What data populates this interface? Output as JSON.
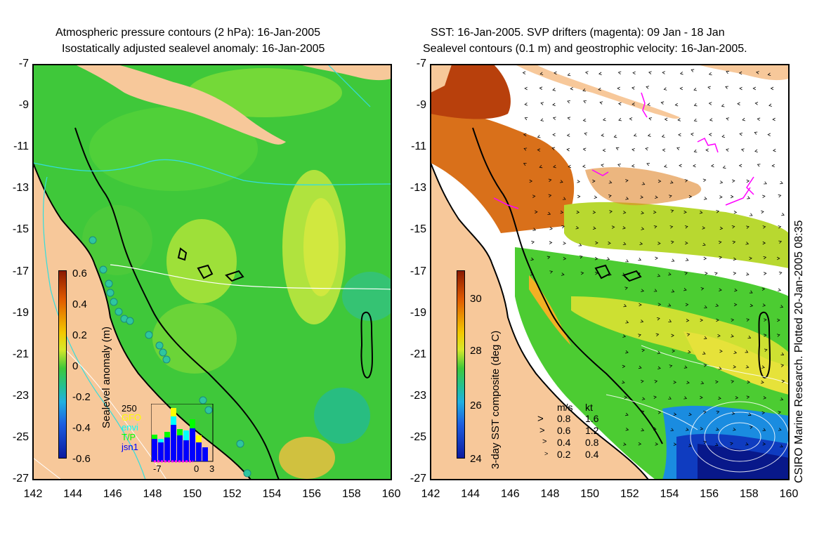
{
  "left_panel": {
    "title_line1": "Atmospheric pressure contours (2 hPa): 16-Jan-2005",
    "title_line2": "Isostatically adjusted sealevel anomaly: 16-Jan-2005",
    "colorbar": {
      "label": "Sealevel anomaly (m)",
      "ticks": [
        "0.6",
        "0.4",
        "0.2",
        "0",
        "-0.2",
        "-0.4",
        "-0.6"
      ]
    },
    "inset": {
      "ymax_label": "250",
      "sources": [
        {
          "name": "GFO",
          "color": "#ffff00"
        },
        {
          "name": "envi",
          "color": "#00ffff"
        },
        {
          "name": "T/P",
          "color": "#00ff00"
        },
        {
          "name": "jsn1",
          "color": "#0000ff"
        }
      ],
      "x_ticks": [
        "-7",
        "0",
        "3"
      ]
    }
  },
  "right_panel": {
    "title_line1": "SST: 16-Jan-2005. SVP drifters (magenta): 09 Jan - 18 Jan",
    "title_line2": "Sealevel contours (0.1 m) and geostrophic velocity: 16-Jan-2005.",
    "colorbar": {
      "label": "3-day SST composite (deg C)",
      "ticks": [
        "30",
        "28",
        "26",
        "24"
      ]
    },
    "velocity_legend": {
      "header_ms": "m/s",
      "header_kt": "kt",
      "rows": [
        {
          "ms": "0.8",
          "kt": "1.6"
        },
        {
          "ms": "0.6",
          "kt": "1.2"
        },
        {
          "ms": "0.4",
          "kt": "0.8"
        },
        {
          "ms": "0.2",
          "kt": "0.4"
        }
      ]
    }
  },
  "axes": {
    "lon_ticks": [
      "142",
      "144",
      "146",
      "148",
      "150",
      "152",
      "154",
      "156",
      "158",
      "160"
    ],
    "lat_ticks": [
      "-7",
      "-9",
      "-11",
      "-13",
      "-15",
      "-17",
      "-19",
      "-21",
      "-23",
      "-25",
      "-27"
    ]
  },
  "credit": "CSIRO Marine Research. Plotted 20-Jan-2005 08:35",
  "colors": {
    "land": "#f7c89a",
    "ocean_green": "#44cc33",
    "coast": "#000000"
  }
}
